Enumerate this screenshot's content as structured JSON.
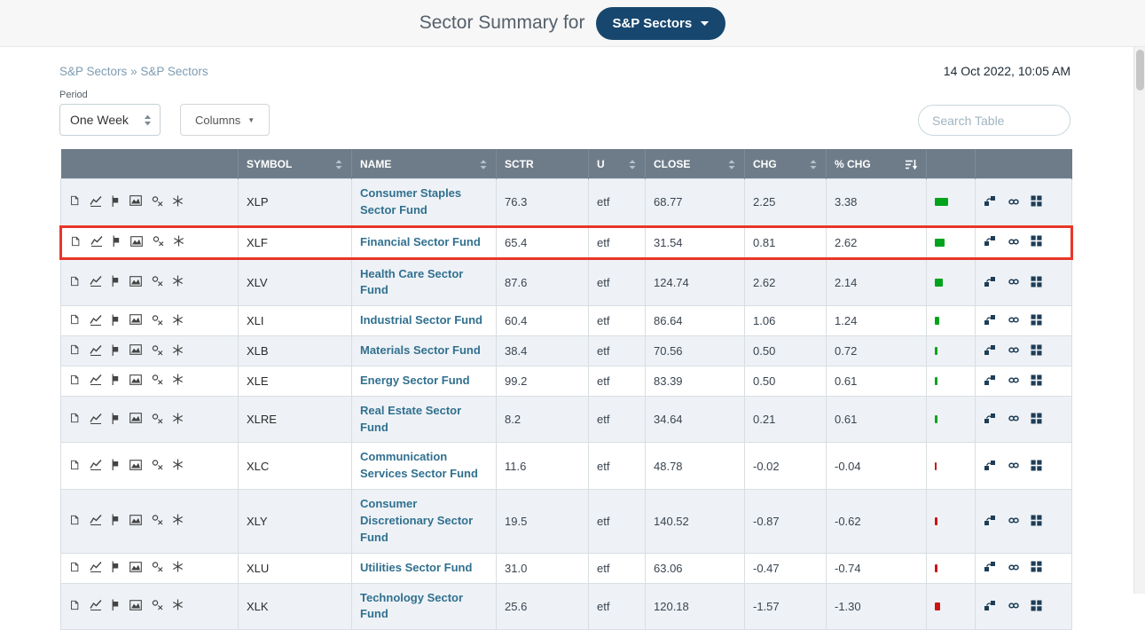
{
  "header": {
    "title": "Sector Summary for",
    "group_button": {
      "label": "S&P Sectors"
    }
  },
  "breadcrumb": {
    "first": "S&P Sectors",
    "separator": "»",
    "second": "S&P Sectors"
  },
  "timestamp": "14 Oct 2022, 10:05 AM",
  "controls": {
    "period_label": "Period",
    "period_value": "One Week",
    "columns_label": "Columns",
    "search_placeholder": "Search Table"
  },
  "table": {
    "headers": {
      "symbol": "SYMBOL",
      "name": "NAME",
      "sctr": "SCTR",
      "u": "U",
      "close": "CLOSE",
      "chg": "CHG",
      "pct_chg": "% CHG"
    },
    "row_icons_left": [
      "note-icon",
      "line-chart-icon",
      "candlestick-chart-icon",
      "gallery-chart-icon",
      "pnf-chart-icon",
      "seasonality-icon"
    ],
    "row_icons_right": [
      "rrg-icon",
      "compare-icon",
      "candleglance-icon"
    ],
    "rows": [
      {
        "symbol": "XLP",
        "name": "Consumer Staples Sector Fund",
        "sctr": "76.3",
        "u": "etf",
        "close": "68.77",
        "chg": "2.25",
        "pct_chg": "3.38",
        "highlight": false
      },
      {
        "symbol": "XLF",
        "name": "Financial Sector Fund",
        "sctr": "65.4",
        "u": "etf",
        "close": "31.54",
        "chg": "0.81",
        "pct_chg": "2.62",
        "highlight": true
      },
      {
        "symbol": "XLV",
        "name": "Health Care Sector Fund",
        "sctr": "87.6",
        "u": "etf",
        "close": "124.74",
        "chg": "2.62",
        "pct_chg": "2.14",
        "highlight": false
      },
      {
        "symbol": "XLI",
        "name": "Industrial Sector Fund",
        "sctr": "60.4",
        "u": "etf",
        "close": "86.64",
        "chg": "1.06",
        "pct_chg": "1.24",
        "highlight": false
      },
      {
        "symbol": "XLB",
        "name": "Materials Sector Fund",
        "sctr": "38.4",
        "u": "etf",
        "close": "70.56",
        "chg": "0.50",
        "pct_chg": "0.72",
        "highlight": false
      },
      {
        "symbol": "XLE",
        "name": "Energy Sector Fund",
        "sctr": "99.2",
        "u": "etf",
        "close": "83.39",
        "chg": "0.50",
        "pct_chg": "0.61",
        "highlight": false
      },
      {
        "symbol": "XLRE",
        "name": "Real Estate Sector Fund",
        "sctr": "8.2",
        "u": "etf",
        "close": "34.64",
        "chg": "0.21",
        "pct_chg": "0.61",
        "highlight": false
      },
      {
        "symbol": "XLC",
        "name": "Communication Services Sector Fund",
        "sctr": "11.6",
        "u": "etf",
        "close": "48.78",
        "chg": "-0.02",
        "pct_chg": "-0.04",
        "highlight": false
      },
      {
        "symbol": "XLY",
        "name": "Consumer Discretionary Sector Fund",
        "sctr": "19.5",
        "u": "etf",
        "close": "140.52",
        "chg": "-0.87",
        "pct_chg": "-0.62",
        "highlight": false
      },
      {
        "symbol": "XLU",
        "name": "Utilities Sector Fund",
        "sctr": "31.0",
        "u": "etf",
        "close": "63.06",
        "chg": "-0.47",
        "pct_chg": "-0.74",
        "highlight": false
      },
      {
        "symbol": "XLK",
        "name": "Technology Sector Fund",
        "sctr": "25.6",
        "u": "etf",
        "close": "120.18",
        "chg": "-1.57",
        "pct_chg": "-1.30",
        "highlight": false
      }
    ]
  },
  "colors": {
    "accent_button": "#17476e",
    "table_header_bg": "#6e7c8a",
    "link": "#31708f",
    "positive_bar": "#00a41c",
    "negative_bar": "#cc1414",
    "highlight_border": "#e8362a",
    "row_shade": "#eef2f6"
  }
}
